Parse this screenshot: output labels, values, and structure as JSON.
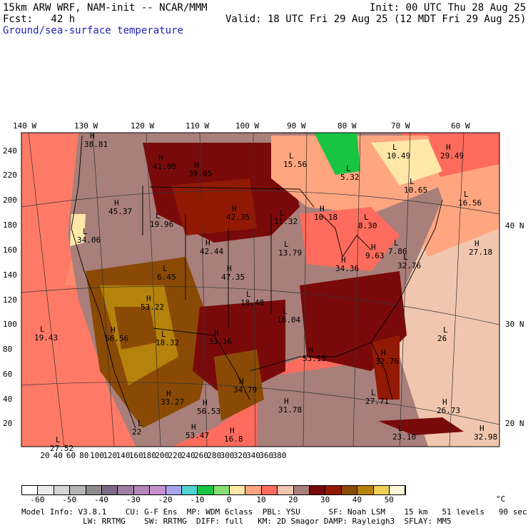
{
  "header": {
    "model": "15km ARW WRF, NAM-init -- NCAR/MMM",
    "init": "Init: 00 UTC Thu 28 Aug 25",
    "fcst": "Fcst:   42 h",
    "valid": "Valid: 18 UTC Fri 29 Aug 25 (12 MDT Fri 29 Aug 25)",
    "field": "Ground/sea-surface temperature"
  },
  "lon_labels": [
    "140 W",
    "130 W",
    "120 W",
    "110 W",
    "100 W",
    "90 W",
    "80 W",
    "70 W",
    "60 W"
  ],
  "lat_labels_right": [
    "40 N",
    "30 N",
    "20 N"
  ],
  "y_ticks": [
    "240",
    "220",
    "200",
    "180",
    "160",
    "140",
    "120",
    "100",
    "80",
    "60",
    "40",
    "20"
  ],
  "x_ticks": [
    "20",
    "40",
    "60",
    "80",
    "100",
    "120",
    "140",
    "160",
    "180",
    "200",
    "220",
    "240",
    "260",
    "280",
    "300",
    "320",
    "340",
    "360",
    "380"
  ],
  "annotations": [
    {
      "m": "H",
      "v": "38.81"
    },
    {
      "m": "H",
      "v": "41.09"
    },
    {
      "m": "H",
      "v": "39.65"
    },
    {
      "m": "L",
      "v": "15.56"
    },
    {
      "m": "L",
      "v": "5.32"
    },
    {
      "m": "L",
      "v": "10.49"
    },
    {
      "m": "H",
      "v": "29.49"
    },
    {
      "m": "L",
      "v": "10.65"
    },
    {
      "m": "L",
      "v": "16.56"
    },
    {
      "m": "H",
      "v": "45.37"
    },
    {
      "m": "L",
      "v": "19.96"
    },
    {
      "m": "H",
      "v": "42.35"
    },
    {
      "m": "L",
      "v": "11.32"
    },
    {
      "m": "H",
      "v": "10.18"
    },
    {
      "m": "L",
      "v": "8.30"
    },
    {
      "m": "L",
      "v": "7.86"
    },
    {
      "m": "L",
      "v": "34.06"
    },
    {
      "m": "H",
      "v": "42.44"
    },
    {
      "m": "L",
      "v": "13.79"
    },
    {
      "m": "H",
      "v": "9.63"
    },
    {
      "m": "H",
      "v": "27.18"
    },
    {
      "m": "L",
      "v": "6.45"
    },
    {
      "m": "H",
      "v": "47.35"
    },
    {
      "m": "H",
      "v": "34.36"
    },
    {
      "m": "L",
      "v": "32.76"
    },
    {
      "m": "H",
      "v": "53.22"
    },
    {
      "m": "L",
      "v": "18.48"
    },
    {
      "m": "L",
      "v": "18.04"
    },
    {
      "m": "L",
      "v": "19.43"
    },
    {
      "m": "H",
      "v": "56.56"
    },
    {
      "m": "L",
      "v": "18.32"
    },
    {
      "m": "H",
      "v": "33.16"
    },
    {
      "m": "L",
      "v": "26"
    },
    {
      "m": "H",
      "v": "53.15"
    },
    {
      "m": "H",
      "v": "34.79"
    },
    {
      "m": "H",
      "v": "32.76"
    },
    {
      "m": "H",
      "v": "33.27"
    },
    {
      "m": "H",
      "v": "56.53"
    },
    {
      "m": "H",
      "v": "31.78"
    },
    {
      "m": "L",
      "v": "27.71"
    },
    {
      "m": "H",
      "v": "26.73"
    },
    {
      "m": "L",
      "v": "22"
    },
    {
      "m": "H",
      "v": "53.47"
    },
    {
      "m": "H",
      "v": "16.8"
    },
    {
      "m": "L",
      "v": "27.52"
    },
    {
      "m": "L",
      "v": "23.10"
    },
    {
      "m": "H",
      "v": "32.98"
    }
  ],
  "colorbar": {
    "colors": [
      "#ffffff",
      "#ebebeb",
      "#d6d6d6",
      "#b4b4b4",
      "#8c8c8c",
      "#7d6b85",
      "#9e7ea3",
      "#b485b8",
      "#c78fd0",
      "#a8a4ec",
      "#4fd3d3",
      "#18c542",
      "#86e070",
      "#ffe7a8",
      "#ffa680",
      "#ff6b5c",
      "#f0c6ae",
      "#a87f7a",
      "#7a0a0a",
      "#921a05",
      "#8a4a06",
      "#b5820b",
      "#f0cf5b",
      "#fff7d6"
    ],
    "labels": [
      "-60",
      "-50",
      "-40",
      "-30",
      "-20",
      "-10",
      "0",
      "10",
      "20",
      "30",
      "40",
      "50"
    ],
    "unit": "°C"
  },
  "footer": {
    "line1": "Model Info: V3.8.1    CU: G-F Ens  MP: WDM 6class  PBL: YSU      SF: Noah LSM    15 km   51 levels   90 sec",
    "line2": "             LW: RRTMG    SW: RRTMG  DIFF: full   KM: 2D Smagor DAMP: Rayleigh3  SFLAY: MM5"
  }
}
